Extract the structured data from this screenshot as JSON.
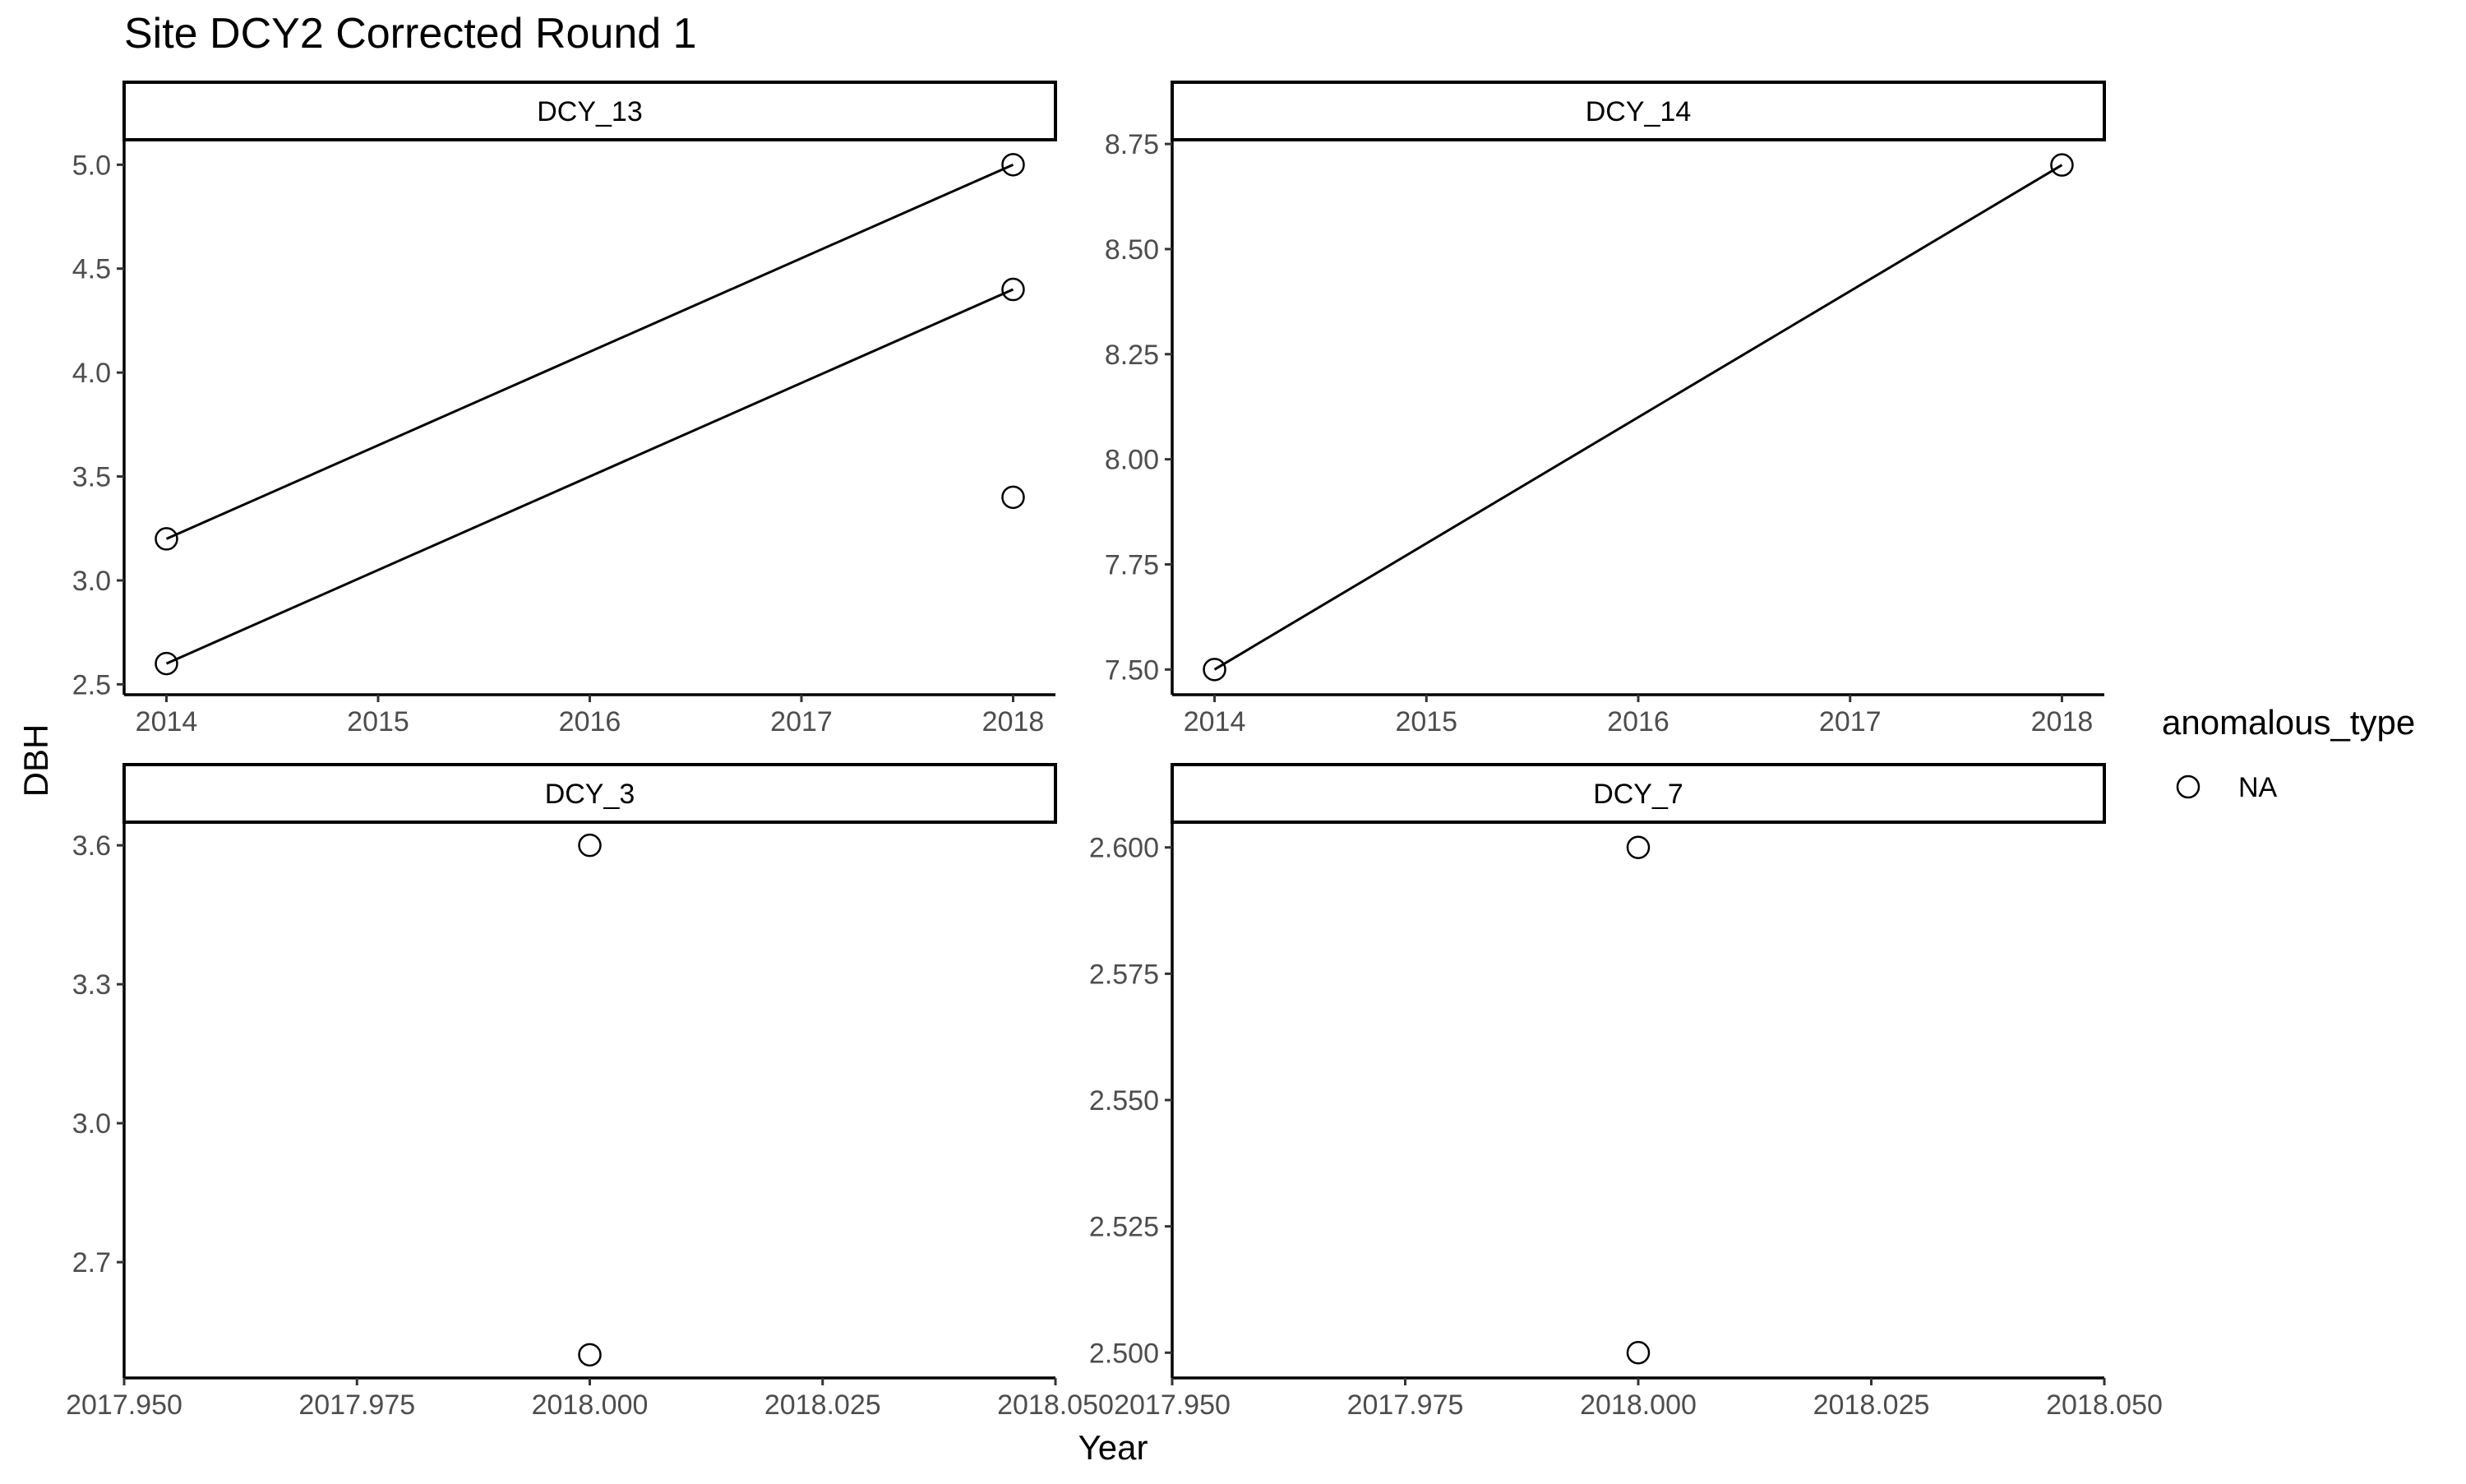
{
  "chart_data": {
    "type": "scatter",
    "title": "Site DCY2 Corrected Round 1",
    "xlabel": "Year",
    "ylabel": "DBH",
    "legend": {
      "title": "anomalous_type",
      "entries": [
        "NA"
      ],
      "placement": "right"
    },
    "grid": false,
    "panels": [
      {
        "name": "DCY_13",
        "xlim": [
          2013.8,
          2018.2
        ],
        "ylim": [
          2.45,
          5.12
        ],
        "x_ticks": [
          2014,
          2015,
          2016,
          2017,
          2018
        ],
        "x_tick_labels": [
          "2014",
          "2015",
          "2016",
          "2017",
          "2018"
        ],
        "y_ticks": [
          2.5,
          3.0,
          3.5,
          4.0,
          4.5,
          5.0
        ],
        "y_tick_labels": [
          "2.5",
          "3.0",
          "3.5",
          "4.0",
          "4.5",
          "5.0"
        ],
        "points": [
          {
            "x": 2014,
            "y": 3.2
          },
          {
            "x": 2014,
            "y": 2.6
          },
          {
            "x": 2018,
            "y": 5.0
          },
          {
            "x": 2018,
            "y": 4.4
          },
          {
            "x": 2018,
            "y": 3.4
          }
        ],
        "lines": [
          {
            "x": [
              2014,
              2018
            ],
            "y": [
              3.2,
              5.0
            ]
          },
          {
            "x": [
              2014,
              2018
            ],
            "y": [
              2.6,
              4.4
            ]
          }
        ]
      },
      {
        "name": "DCY_14",
        "xlim": [
          2013.8,
          2018.2
        ],
        "ylim": [
          7.44,
          8.76
        ],
        "x_ticks": [
          2014,
          2015,
          2016,
          2017,
          2018
        ],
        "x_tick_labels": [
          "2014",
          "2015",
          "2016",
          "2017",
          "2018"
        ],
        "y_ticks": [
          7.5,
          7.75,
          8.0,
          8.25,
          8.5,
          8.75
        ],
        "y_tick_labels": [
          "7.50",
          "7.75",
          "8.00",
          "8.25",
          "8.50",
          "8.75"
        ],
        "points": [
          {
            "x": 2014,
            "y": 7.5
          },
          {
            "x": 2018,
            "y": 8.7
          }
        ],
        "lines": [
          {
            "x": [
              2014,
              2018
            ],
            "y": [
              7.5,
              8.7
            ]
          }
        ]
      },
      {
        "name": "DCY_3",
        "xlim": [
          2017.95,
          2018.05
        ],
        "ylim": [
          2.45,
          3.65
        ],
        "x_ticks": [
          2017.95,
          2017.975,
          2018.0,
          2018.025,
          2018.05
        ],
        "x_tick_labels": [
          "2017.950",
          "2017.975",
          "2018.000",
          "2018.025",
          "2018.050"
        ],
        "y_ticks": [
          2.7,
          3.0,
          3.3,
          3.6
        ],
        "y_tick_labels": [
          "2.7",
          "3.0",
          "3.3",
          "3.6"
        ],
        "points": [
          {
            "x": 2018.0,
            "y": 3.6
          },
          {
            "x": 2018.0,
            "y": 2.5
          }
        ],
        "lines": []
      },
      {
        "name": "DCY_7",
        "xlim": [
          2017.95,
          2018.05
        ],
        "ylim": [
          2.495,
          2.605
        ],
        "x_ticks": [
          2017.95,
          2017.975,
          2018.0,
          2018.025,
          2018.05
        ],
        "x_tick_labels": [
          "2017.950",
          "2017.975",
          "2018.000",
          "2018.025",
          "2018.050"
        ],
        "y_ticks": [
          2.5,
          2.525,
          2.55,
          2.575,
          2.6
        ],
        "y_tick_labels": [
          "2.500",
          "2.525",
          "2.550",
          "2.575",
          "2.600"
        ],
        "points": [
          {
            "x": 2018.0,
            "y": 2.6
          },
          {
            "x": 2018.0,
            "y": 2.5
          }
        ],
        "lines": []
      }
    ]
  }
}
